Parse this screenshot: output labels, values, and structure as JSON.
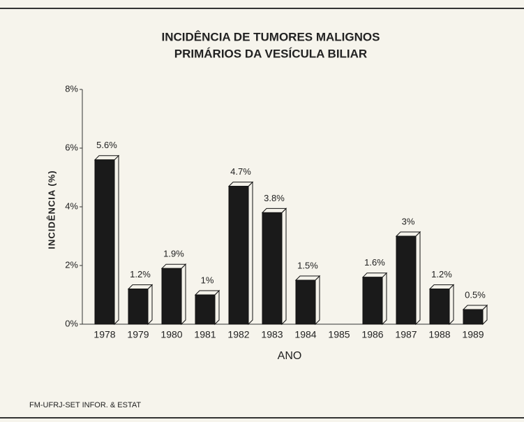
{
  "chart_data": {
    "type": "bar",
    "title_lines": [
      "INCIDÊNCIA DE TUMORES MALIGNOS",
      "PRIMÁRIOS DA VESÍCULA BILIAR"
    ],
    "x_label": "ANO",
    "y_label": "INCIDÊNCIA (%)",
    "categories": [
      "1978",
      "1979",
      "1980",
      "1981",
      "1982",
      "1983",
      "1984",
      "1985",
      "1986",
      "1987",
      "1988",
      "1989"
    ],
    "values": [
      5.6,
      1.2,
      1.9,
      1,
      4.7,
      3.8,
      1.5,
      null,
      1.6,
      3,
      1.2,
      0.5
    ],
    "value_labels": [
      "5.6%",
      "1.2%",
      "1.9%",
      "1%",
      "4.7%",
      "3.8%",
      "1.5%",
      null,
      "1.6%",
      "3%",
      "1.2%",
      "0.5%"
    ],
    "color": "#1a1a1a",
    "ylim": [
      0,
      8
    ],
    "yticks": [
      {
        "value": 0,
        "label": "0%"
      },
      {
        "value": 2,
        "label": "2%"
      },
      {
        "value": 4,
        "label": "4%"
      },
      {
        "value": 6,
        "label": "6%"
      },
      {
        "value": 8,
        "label": "8%"
      }
    ],
    "grid": false,
    "source": "FM-UFRJ-SET  INFOR. & ESTAT"
  }
}
